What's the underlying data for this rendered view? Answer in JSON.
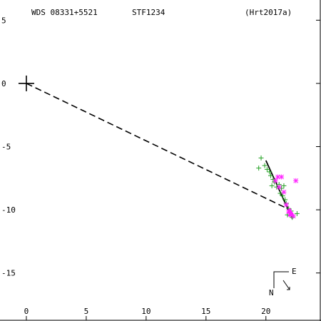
{
  "header": {
    "wds": "WDS 08331+5521",
    "disc": "STF1234",
    "ref": "(Hrt2017a)"
  },
  "compass": {
    "e_label": "E",
    "n_label": "N"
  },
  "colors": {
    "axes": "#000000",
    "historical": "#22a022",
    "recent": "#ff22ff",
    "orbit": "#000000"
  },
  "chart_data": {
    "type": "scatter",
    "title": "",
    "xlabel": "",
    "ylabel": "",
    "xlim": [
      -2.2,
      24.6
    ],
    "ylim": [
      -18.8,
      6.6
    ],
    "x_ticks": [
      0,
      5,
      10,
      15,
      20
    ],
    "y_ticks": [
      5,
      0,
      -5,
      -10,
      -15
    ],
    "x_tick_labels": [
      "0",
      "5",
      "10",
      "15",
      "20"
    ],
    "y_tick_labels": [
      "5",
      "0",
      "-5",
      "-10",
      "-15"
    ],
    "primary": {
      "x": 0,
      "y": 0
    },
    "predicted_position": {
      "x": 22.0,
      "y": -10.0
    },
    "series": [
      {
        "marker": "plus",
        "points": [
          [
            19.6,
            -5.9
          ],
          [
            19.4,
            -6.7
          ],
          [
            19.9,
            -6.5
          ],
          [
            20.1,
            -6.8
          ],
          [
            20.3,
            -7.0
          ],
          [
            20.4,
            -7.3
          ],
          [
            20.6,
            -7.6
          ],
          [
            20.7,
            -7.8
          ],
          [
            20.5,
            -8.1
          ],
          [
            20.9,
            -8.2
          ],
          [
            21.1,
            -8.0
          ],
          [
            21.3,
            -8.3
          ],
          [
            21.2,
            -8.7
          ],
          [
            21.5,
            -8.1
          ],
          [
            21.4,
            -8.9
          ],
          [
            21.6,
            -9.2
          ],
          [
            21.7,
            -9.5
          ],
          [
            21.9,
            -9.9
          ],
          [
            22.1,
            -10.1
          ],
          [
            22.6,
            -10.3
          ],
          [
            22.2,
            -10.6
          ],
          [
            21.8,
            -10.4
          ]
        ]
      },
      {
        "marker": "star",
        "points": [
          [
            21.0,
            -7.4
          ],
          [
            21.3,
            -7.4
          ],
          [
            20.8,
            -7.7
          ],
          [
            21.1,
            -8.2
          ],
          [
            21.5,
            -8.6
          ],
          [
            22.5,
            -7.7
          ],
          [
            21.7,
            -9.6
          ],
          [
            21.9,
            -10.1
          ],
          [
            22.1,
            -10.4
          ],
          [
            22.3,
            -10.5
          ]
        ]
      },
      {
        "marker": "triangle",
        "points": [
          [
            22.0,
            -10.1
          ],
          [
            22.1,
            -10.3
          ]
        ]
      }
    ],
    "orbit_segment": [
      [
        20.0,
        -6.1
      ],
      [
        22.2,
        -10.7
      ]
    ]
  }
}
